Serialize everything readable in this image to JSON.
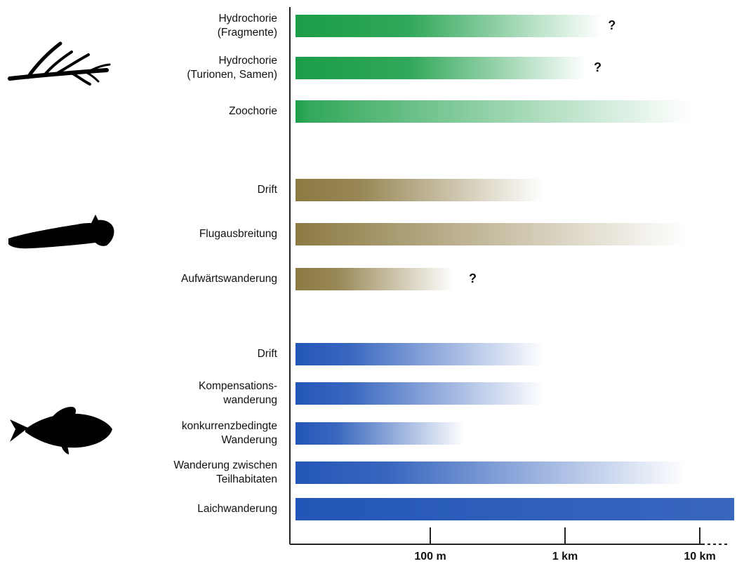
{
  "chart_data": {
    "type": "bar",
    "orientation": "horizontal",
    "x_scale": "log",
    "x_unit": "m",
    "xlim": [
      10,
      20000
    ],
    "ticks": [
      {
        "value": 100,
        "label": "100 m"
      },
      {
        "value": 1000,
        "label": "1 km"
      },
      {
        "value": 10000,
        "label": "10 km"
      }
    ],
    "groups": [
      {
        "icon": "plant-icon",
        "color": "#1a9e47",
        "rows": [
          {
            "label": [
              "Hydrochorie",
              "(Fragmente)"
            ],
            "solid_to": 70,
            "fade_to": 1850,
            "question": true
          },
          {
            "label": [
              "Hydrochorie",
              "(Turionen, Samen)"
            ],
            "solid_to": 70,
            "fade_to": 1450,
            "question": true
          },
          {
            "label": [
              "Zoochorie"
            ],
            "solid_to": 12,
            "fade_to": 8500,
            "question": false
          }
        ]
      },
      {
        "icon": "insect-larva-icon",
        "color": "#8c7a42",
        "rows": [
          {
            "label": [
              "Drift"
            ],
            "solid_to": 30,
            "fade_to": 700,
            "question": false
          },
          {
            "label": [
              "Flugausbreitung"
            ],
            "solid_to": 20,
            "fade_to": 8000,
            "question": false
          },
          {
            "label": [
              "Aufwärtswanderung"
            ],
            "solid_to": 20,
            "fade_to": 150,
            "question": true
          }
        ]
      },
      {
        "icon": "fish-icon",
        "color": "#2356b8",
        "rows": [
          {
            "label": [
              "Drift"
            ],
            "solid_to": 25,
            "fade_to": 700,
            "question": false
          },
          {
            "label": [
              "Kompensations-",
              "wanderung"
            ],
            "solid_to": 25,
            "fade_to": 700,
            "question": false
          },
          {
            "label": [
              "konkurrenzbedingte",
              "Wanderung"
            ],
            "solid_to": 20,
            "fade_to": 180,
            "question": false
          },
          {
            "label": [
              "Wanderung zwischen",
              "Teilhabitaten"
            ],
            "solid_to": 50,
            "fade_to": 8000,
            "question": false
          },
          {
            "label": [
              "Laichwanderung"
            ],
            "solid_to": 20000,
            "fade_to": 20000,
            "question": false
          }
        ]
      }
    ],
    "question_mark": "?",
    "axis_continues": true
  }
}
